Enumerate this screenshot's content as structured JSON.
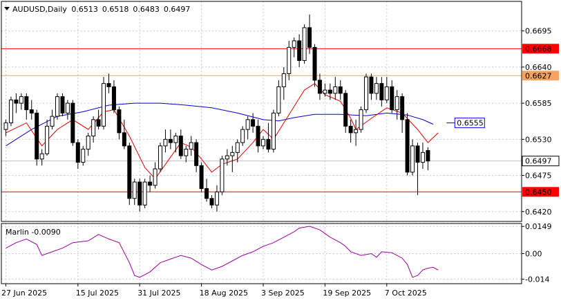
{
  "chart_data": [
    {
      "type": "candlestick",
      "title": "AUDUSD,Daily",
      "ohlc_header": [
        "0.6513",
        "0.6518",
        "0.6483",
        "0.6497"
      ],
      "ylim": [
        0.6405,
        0.674
      ],
      "y_ticks": [
        "0.6695",
        "0.6640",
        "0.6585",
        "0.6530",
        "0.6475",
        "0.6420"
      ],
      "x_ticks": [
        {
          "label": "27 Jun 2025",
          "index": 0
        },
        {
          "label": "15 Jul 2025",
          "index": 14
        },
        {
          "label": "31 Jul 2025",
          "index": 26
        },
        {
          "label": "18 Aug 2025",
          "index": 38
        },
        {
          "label": "3 Sep 2025",
          "index": 50
        },
        {
          "label": "19 Sep 2025",
          "index": 62
        },
        {
          "label": "7 Oct 2025",
          "index": 74
        }
      ],
      "candles": [
        [
          0.6545,
          0.656,
          0.6535,
          0.6555
        ],
        [
          0.6555,
          0.6595,
          0.655,
          0.659
        ],
        [
          0.659,
          0.66,
          0.657,
          0.6585
        ],
        [
          0.6585,
          0.66,
          0.6575,
          0.6595
        ],
        [
          0.6595,
          0.66,
          0.656,
          0.6575
        ],
        [
          0.6575,
          0.659,
          0.656,
          0.657
        ],
        [
          0.657,
          0.6575,
          0.649,
          0.65
        ],
        [
          0.65,
          0.6515,
          0.649,
          0.6508
        ],
        [
          0.6508,
          0.656,
          0.6505,
          0.655
        ],
        [
          0.655,
          0.6575,
          0.6545,
          0.6565
        ],
        [
          0.6565,
          0.66,
          0.656,
          0.6595
        ],
        [
          0.6595,
          0.66,
          0.6565,
          0.657
        ],
        [
          0.657,
          0.659,
          0.656,
          0.6585
        ],
        [
          0.6585,
          0.659,
          0.652,
          0.6525
        ],
        [
          0.6525,
          0.653,
          0.6485,
          0.6495
        ],
        [
          0.6495,
          0.652,
          0.649,
          0.6515
        ],
        [
          0.6515,
          0.654,
          0.6505,
          0.6535
        ],
        [
          0.6535,
          0.6565,
          0.6525,
          0.656
        ],
        [
          0.656,
          0.6575,
          0.6545,
          0.655
        ],
        [
          0.655,
          0.6625,
          0.6545,
          0.6615
        ],
        [
          0.6615,
          0.663,
          0.66,
          0.661
        ],
        [
          0.661,
          0.662,
          0.657,
          0.6575
        ],
        [
          0.6575,
          0.658,
          0.653,
          0.654
        ],
        [
          0.654,
          0.656,
          0.6515,
          0.652
        ],
        [
          0.652,
          0.6525,
          0.643,
          0.644
        ],
        [
          0.644,
          0.647,
          0.643,
          0.6465
        ],
        [
          0.6465,
          0.647,
          0.642,
          0.643
        ],
        [
          0.643,
          0.647,
          0.6425,
          0.6465
        ],
        [
          0.6465,
          0.6475,
          0.645,
          0.646
        ],
        [
          0.646,
          0.6495,
          0.6455,
          0.6485
        ],
        [
          0.6485,
          0.6525,
          0.648,
          0.652
        ],
        [
          0.652,
          0.6545,
          0.651,
          0.653
        ],
        [
          0.653,
          0.6545,
          0.6515,
          0.6525
        ],
        [
          0.6525,
          0.654,
          0.651,
          0.6535
        ],
        [
          0.6535,
          0.6545,
          0.65,
          0.6505
        ],
        [
          0.6505,
          0.652,
          0.6495,
          0.6515
        ],
        [
          0.6515,
          0.6535,
          0.6505,
          0.6525
        ],
        [
          0.6525,
          0.653,
          0.648,
          0.649
        ],
        [
          0.649,
          0.6495,
          0.645,
          0.6455
        ],
        [
          0.6455,
          0.647,
          0.6435,
          0.644
        ],
        [
          0.644,
          0.6445,
          0.6425,
          0.643
        ],
        [
          0.643,
          0.646,
          0.642,
          0.645
        ],
        [
          0.645,
          0.6505,
          0.6445,
          0.65
        ],
        [
          0.65,
          0.6515,
          0.649,
          0.6505
        ],
        [
          0.6505,
          0.652,
          0.648,
          0.651
        ],
        [
          0.651,
          0.653,
          0.6495,
          0.6525
        ],
        [
          0.6525,
          0.655,
          0.652,
          0.6545
        ],
        [
          0.6545,
          0.6565,
          0.653,
          0.656
        ],
        [
          0.656,
          0.657,
          0.654,
          0.655
        ],
        [
          0.655,
          0.656,
          0.651,
          0.652
        ],
        [
          0.652,
          0.6535,
          0.6515,
          0.653
        ],
        [
          0.653,
          0.6555,
          0.651,
          0.6515
        ],
        [
          0.6515,
          0.6575,
          0.651,
          0.657
        ],
        [
          0.657,
          0.662,
          0.6565,
          0.661
        ],
        [
          0.661,
          0.664,
          0.659,
          0.663
        ],
        [
          0.663,
          0.668,
          0.662,
          0.667
        ],
        [
          0.667,
          0.6685,
          0.6655,
          0.668
        ],
        [
          0.668,
          0.669,
          0.664,
          0.665
        ],
        [
          0.665,
          0.6705,
          0.6645,
          0.67
        ],
        [
          0.67,
          0.672,
          0.666,
          0.667
        ],
        [
          0.667,
          0.6675,
          0.661,
          0.662
        ],
        [
          0.662,
          0.663,
          0.659,
          0.66
        ],
        [
          0.66,
          0.6615,
          0.6595,
          0.6605
        ],
        [
          0.6605,
          0.6615,
          0.659,
          0.66
        ],
        [
          0.66,
          0.6625,
          0.659,
          0.661
        ],
        [
          0.661,
          0.662,
          0.659,
          0.66
        ],
        [
          0.66,
          0.6605,
          0.654,
          0.655
        ],
        [
          0.655,
          0.656,
          0.6525,
          0.654
        ],
        [
          0.654,
          0.656,
          0.652,
          0.6545
        ],
        [
          0.6545,
          0.658,
          0.654,
          0.6575
        ],
        [
          0.6575,
          0.663,
          0.657,
          0.6625
        ],
        [
          0.6625,
          0.663,
          0.659,
          0.66
        ],
        [
          0.66,
          0.6625,
          0.659,
          0.6615
        ],
        [
          0.6615,
          0.6625,
          0.658,
          0.659
        ],
        [
          0.659,
          0.6625,
          0.6585,
          0.661
        ],
        [
          0.661,
          0.662,
          0.657,
          0.6575
        ],
        [
          0.6575,
          0.6605,
          0.656,
          0.6595
        ],
        [
          0.6595,
          0.66,
          0.654,
          0.656
        ],
        [
          0.656,
          0.657,
          0.6475,
          0.648
        ],
        [
          0.648,
          0.653,
          0.6475,
          0.652
        ],
        [
          0.652,
          0.6525,
          0.6445,
          0.6495
        ],
        [
          0.6495,
          0.6525,
          0.6485,
          0.651
        ],
        [
          0.6513,
          0.6518,
          0.6483,
          0.6497
        ]
      ],
      "series": [
        {
          "color": "#0000c8",
          "points": [
            [
              0,
              0.652
            ],
            [
              5,
              0.6545
            ],
            [
              10,
              0.6565
            ],
            [
              15,
              0.6572
            ],
            [
              20,
              0.6582
            ],
            [
              25,
              0.6585
            ],
            [
              30,
              0.6585
            ],
            [
              35,
              0.6582
            ],
            [
              40,
              0.6578
            ],
            [
              45,
              0.657
            ],
            [
              50,
              0.656
            ],
            [
              53,
              0.6558
            ],
            [
              56,
              0.6563
            ],
            [
              60,
              0.6568
            ],
            [
              65,
              0.6568
            ],
            [
              70,
              0.6566
            ],
            [
              74,
              0.657
            ],
            [
              78,
              0.6567
            ],
            [
              81,
              0.656
            ],
            [
              83,
              0.6553
            ]
          ]
        },
        {
          "color": "#e00000",
          "points": [
            [
              0,
              0.654
            ],
            [
              4,
              0.6555
            ],
            [
              7,
              0.652
            ],
            [
              10,
              0.6545
            ],
            [
              13,
              0.656
            ],
            [
              16,
              0.6545
            ],
            [
              19,
              0.6572
            ],
            [
              21,
              0.6575
            ],
            [
              24,
              0.6535
            ],
            [
              27,
              0.6487
            ],
            [
              29,
              0.647
            ],
            [
              31,
              0.6492
            ],
            [
              34,
              0.6525
            ],
            [
              36,
              0.6518
            ],
            [
              38,
              0.65
            ],
            [
              40,
              0.648
            ],
            [
              42,
              0.6492
            ],
            [
              45,
              0.65
            ],
            [
              48,
              0.6525
            ],
            [
              50,
              0.6545
            ],
            [
              52,
              0.653
            ],
            [
              54,
              0.6555
            ],
            [
              56,
              0.658
            ],
            [
              58,
              0.6605
            ],
            [
              60,
              0.6615
            ],
            [
              62,
              0.6598
            ],
            [
              65,
              0.6588
            ],
            [
              67,
              0.6562
            ],
            [
              68,
              0.6545
            ],
            [
              71,
              0.6562
            ],
            [
              74,
              0.6578
            ],
            [
              77,
              0.657
            ],
            [
              80,
              0.6545
            ],
            [
              82,
              0.6525
            ],
            [
              84,
              0.654
            ]
          ]
        }
      ],
      "hlines": [
        {
          "value": 0.6668,
          "label": "0.6668",
          "color": "#ff0000"
        },
        {
          "value": 0.6627,
          "label": "0.6627",
          "color": "#f4a460"
        },
        {
          "value": 0.645,
          "label": "0.6450",
          "color": "#ff0000"
        }
      ],
      "current_price": {
        "value": 0.6497,
        "label": "0.6497"
      },
      "ma_label": {
        "value": 0.6555,
        "label": "0.6555",
        "index": 84,
        "color": "#0000ff"
      }
    },
    {
      "type": "line",
      "title": "Marlin -0.0090",
      "ylim": [
        -0.0165,
        0.0165
      ],
      "y_ticks": [
        "0.0149",
        "0.00",
        "-0.014"
      ],
      "series": [
        {
          "color": "#990099",
          "points": [
            [
              0,
              0.003
            ],
            [
              2,
              0.006
            ],
            [
              4,
              0.008
            ],
            [
              6,
              0.005
            ],
            [
              7,
              -0.001
            ],
            [
              9,
              0.001
            ],
            [
              11,
              0.003
            ],
            [
              13,
              0.006
            ],
            [
              16,
              0.007
            ],
            [
              18,
              0.0105
            ],
            [
              20,
              0.008
            ],
            [
              22,
              0.006
            ],
            [
              24,
              -0.005
            ],
            [
              25,
              -0.012
            ],
            [
              26,
              -0.013
            ],
            [
              28,
              -0.01
            ],
            [
              30,
              -0.005
            ],
            [
              32,
              -0.003
            ],
            [
              34,
              -0.001
            ],
            [
              36,
              -0.0025
            ],
            [
              38,
              -0.006
            ],
            [
              40,
              -0.009
            ],
            [
              42,
              -0.007
            ],
            [
              44,
              -0.004
            ],
            [
              46,
              -0.001
            ],
            [
              48,
              0.001
            ],
            [
              50,
              0.004
            ],
            [
              52,
              0.006
            ],
            [
              54,
              0.009
            ],
            [
              56,
              0.012
            ],
            [
              57,
              0.014
            ],
            [
              59,
              0.015
            ],
            [
              61,
              0.013
            ],
            [
              63,
              0.009
            ],
            [
              65,
              0.006
            ],
            [
              66,
              0.004
            ],
            [
              67,
              0.001
            ],
            [
              69,
              -0.001
            ],
            [
              71,
              0.0
            ],
            [
              72,
              -0.002
            ],
            [
              73,
              0.001
            ],
            [
              75,
              0.0005
            ],
            [
              77,
              -0.0025
            ],
            [
              78,
              -0.006
            ],
            [
              79,
              -0.013
            ],
            [
              80,
              -0.012
            ],
            [
              81,
              -0.009
            ],
            [
              82,
              -0.008
            ],
            [
              83,
              -0.0075
            ],
            [
              84,
              -0.009
            ]
          ]
        }
      ]
    }
  ]
}
